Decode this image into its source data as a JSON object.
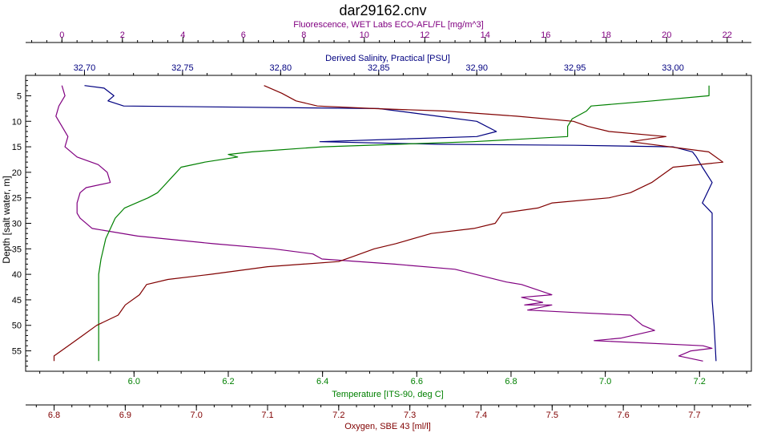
{
  "chart_data": {
    "type": "line",
    "title": "dar29162.cnv",
    "ylabel": "Depth [salt water, m]",
    "y": {
      "range": [
        1,
        59
      ],
      "inverted": true,
      "ticks": [
        5,
        10,
        15,
        20,
        25,
        30,
        35,
        40,
        45,
        50,
        55
      ]
    },
    "grid": false,
    "legend": "none",
    "axes": {
      "fluorescence": {
        "label": "Fluorescence, WET Labs ECO-AFL/FL [mg/m^3]",
        "range": [
          -1.2,
          22.8
        ],
        "ticks": [
          0,
          2,
          4,
          6,
          8,
          10,
          12,
          14,
          16,
          18,
          20,
          22
        ],
        "tick_labels": [
          "0",
          "2",
          "4",
          "6",
          "8",
          "10",
          "12",
          "14",
          "16",
          "18",
          "20",
          "22"
        ],
        "color": "#800080"
      },
      "salinity": {
        "label": "Derived Salinity, Practical [PSU]",
        "range": [
          32.67,
          33.04
        ],
        "ticks": [
          32.7,
          32.75,
          32.8,
          32.85,
          32.9,
          32.95,
          33.0
        ],
        "tick_labels": [
          "32,70",
          "32,75",
          "32,80",
          "32,85",
          "32,90",
          "32,95",
          "33,00"
        ],
        "color": "#000080"
      },
      "temperature": {
        "label": "Temperature [ITS-90, deg C]",
        "range": [
          5.77,
          7.31
        ],
        "ticks": [
          6.0,
          6.2,
          6.4,
          6.6,
          6.8,
          7.0,
          7.2
        ],
        "tick_labels": [
          "6.0",
          "6.2",
          "6.4",
          "6.6",
          "6.8",
          "7.0",
          "7.2"
        ],
        "color": "#008000"
      },
      "oxygen": {
        "label": "Oxygen, SBE 43 [ml/l]",
        "range": [
          6.76,
          7.78
        ],
        "ticks": [
          6.8,
          6.9,
          7.0,
          7.1,
          7.2,
          7.3,
          7.4,
          7.5,
          7.6,
          7.7
        ],
        "tick_labels": [
          "6.8",
          "6.9",
          "7.0",
          "7.1",
          "7.2",
          "7.3",
          "7.4",
          "7.5",
          "7.6",
          "7.7"
        ],
        "color": "#800000"
      }
    },
    "series": [
      {
        "axis": "fluorescence",
        "color": "#800080",
        "points": [
          [
            0,
            3
          ],
          [
            0.1,
            5
          ],
          [
            -0.1,
            7
          ],
          [
            -0.2,
            9
          ],
          [
            0,
            11
          ],
          [
            0.2,
            13
          ],
          [
            0.1,
            15
          ],
          [
            0.5,
            17
          ],
          [
            1.2,
            18.5
          ],
          [
            1.5,
            20
          ],
          [
            1.6,
            22
          ],
          [
            0.8,
            23
          ],
          [
            0.6,
            24
          ],
          [
            0.5,
            26
          ],
          [
            0.5,
            28
          ],
          [
            0.6,
            29
          ],
          [
            1,
            31
          ],
          [
            2.5,
            32.5
          ],
          [
            5,
            34
          ],
          [
            7,
            35
          ],
          [
            8.3,
            36
          ],
          [
            8.6,
            37
          ],
          [
            11,
            38
          ],
          [
            13,
            39
          ],
          [
            14.7,
            41.5
          ],
          [
            15.2,
            42
          ],
          [
            15.7,
            43
          ],
          [
            16.2,
            44
          ],
          [
            15.2,
            44.5
          ],
          [
            15.9,
            45.5
          ],
          [
            15.3,
            46
          ],
          [
            16.2,
            46
          ],
          [
            15.4,
            47
          ],
          [
            17,
            47.5
          ],
          [
            18.8,
            48
          ],
          [
            19,
            49
          ],
          [
            19.2,
            50
          ],
          [
            19.6,
            51
          ],
          [
            18.5,
            52.5
          ],
          [
            17.6,
            53
          ],
          [
            21.2,
            54
          ],
          [
            21.5,
            54.5
          ],
          [
            20.8,
            55
          ],
          [
            20.4,
            56
          ],
          [
            21.2,
            57
          ]
        ]
      },
      {
        "axis": "salinity",
        "color": "#000080",
        "points": [
          [
            32.7,
            3
          ],
          [
            32.71,
            3.5
          ],
          [
            32.715,
            5
          ],
          [
            32.712,
            6
          ],
          [
            32.72,
            7
          ],
          [
            32.85,
            7.5
          ],
          [
            32.86,
            8
          ],
          [
            32.88,
            9
          ],
          [
            32.9,
            10
          ],
          [
            32.91,
            12
          ],
          [
            32.9,
            13
          ],
          [
            32.82,
            14
          ],
          [
            32.88,
            14.5
          ],
          [
            32.95,
            14.7
          ],
          [
            33.0,
            15
          ],
          [
            33.01,
            16
          ],
          [
            33.012,
            17
          ],
          [
            33.015,
            19
          ],
          [
            33.02,
            22
          ],
          [
            33.015,
            26
          ],
          [
            33.02,
            28
          ],
          [
            33.02,
            33
          ],
          [
            33.02,
            40
          ],
          [
            33.02,
            45
          ],
          [
            33.021,
            50
          ],
          [
            33.022,
            57
          ]
        ]
      },
      {
        "axis": "temperature",
        "color": "#008000",
        "points": [
          [
            7.22,
            3
          ],
          [
            7.22,
            5
          ],
          [
            7.1,
            6
          ],
          [
            6.97,
            7
          ],
          [
            6.96,
            8
          ],
          [
            6.93,
            9.5
          ],
          [
            6.92,
            11
          ],
          [
            6.92,
            13
          ],
          [
            6.72,
            14
          ],
          [
            6.4,
            15
          ],
          [
            6.25,
            16
          ],
          [
            6.2,
            16.5
          ],
          [
            6.22,
            17
          ],
          [
            6.15,
            18
          ],
          [
            6.1,
            19
          ],
          [
            6.08,
            21
          ],
          [
            6.06,
            23
          ],
          [
            6.05,
            24
          ],
          [
            6.03,
            25
          ],
          [
            5.98,
            27
          ],
          [
            5.96,
            29
          ],
          [
            5.95,
            31
          ],
          [
            5.94,
            33
          ],
          [
            5.935,
            35
          ],
          [
            5.93,
            37
          ],
          [
            5.925,
            40
          ],
          [
            5.925,
            45
          ],
          [
            5.925,
            50
          ],
          [
            5.925,
            55
          ],
          [
            5.925,
            57
          ]
        ]
      },
      {
        "axis": "oxygen",
        "color": "#800000",
        "points": [
          [
            7.095,
            3
          ],
          [
            7.12,
            4.5
          ],
          [
            7.14,
            6
          ],
          [
            7.17,
            7
          ],
          [
            7.25,
            7.5
          ],
          [
            7.35,
            8
          ],
          [
            7.45,
            9
          ],
          [
            7.53,
            10
          ],
          [
            7.55,
            11
          ],
          [
            7.58,
            12
          ],
          [
            7.66,
            13
          ],
          [
            7.61,
            14
          ],
          [
            7.72,
            16
          ],
          [
            7.74,
            18
          ],
          [
            7.67,
            19
          ],
          [
            7.66,
            20
          ],
          [
            7.64,
            22
          ],
          [
            7.61,
            24
          ],
          [
            7.58,
            25
          ],
          [
            7.5,
            26
          ],
          [
            7.48,
            27
          ],
          [
            7.43,
            28
          ],
          [
            7.42,
            30
          ],
          [
            7.39,
            31
          ],
          [
            7.33,
            32
          ],
          [
            7.28,
            34
          ],
          [
            7.25,
            35
          ],
          [
            7.22,
            36.5
          ],
          [
            7.2,
            37.5
          ],
          [
            7.1,
            38.5
          ],
          [
            7.02,
            40
          ],
          [
            6.96,
            41
          ],
          [
            6.93,
            42
          ],
          [
            6.92,
            44
          ],
          [
            6.9,
            46
          ],
          [
            6.89,
            48
          ],
          [
            6.86,
            50
          ],
          [
            6.84,
            52
          ],
          [
            6.82,
            54
          ],
          [
            6.8,
            56
          ],
          [
            6.8,
            57
          ]
        ]
      }
    ]
  }
}
